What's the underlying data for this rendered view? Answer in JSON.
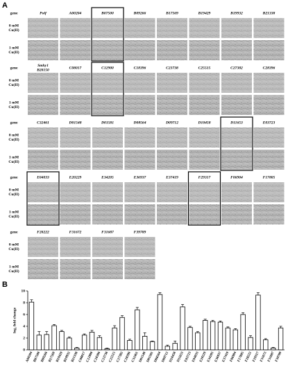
{
  "panel_a": {
    "label": "A",
    "row_labels": [
      [
        "gene"
      ],
      [
        "0 mM",
        "Cu(II)"
      ],
      [
        "1 mM",
        "Cu(II)"
      ]
    ],
    "blocks": [
      {
        "genes": [
          {
            "lines": [
              "Polf"
            ]
          },
          {
            "lines": [
              "A00204"
            ]
          },
          {
            "lines": [
              "B07500"
            ],
            "boxed": true
          },
          {
            "lines": [
              "B09266"
            ]
          },
          {
            "lines": [
              "B17569"
            ]
          },
          {
            "lines": [
              "B19429"
            ]
          },
          {
            "lines": [
              "B19932"
            ]
          },
          {
            "lines": [
              "B21338"
            ]
          }
        ]
      },
      {
        "genes": [
          {
            "lines": [
              "Smhy1",
              "B28150"
            ]
          },
          {
            "lines": [
              "C08017"
            ]
          },
          {
            "lines": [
              "C12900"
            ],
            "boxed": true
          },
          {
            "lines": [
              "C18396"
            ]
          },
          {
            "lines": [
              "C23738"
            ]
          },
          {
            "lines": [
              "C25515"
            ]
          },
          {
            "lines": [
              "C27382"
            ]
          },
          {
            "lines": [
              "C28396"
            ]
          }
        ]
      },
      {
        "genes": [
          {
            "lines": [
              "C32461"
            ]
          },
          {
            "lines": [
              "D01548"
            ]
          },
          {
            "lines": [
              "D01581"
            ]
          },
          {
            "lines": [
              "D08564"
            ]
          },
          {
            "lines": [
              "D09712"
            ]
          },
          {
            "lines": [
              "D10458"
            ]
          },
          {
            "lines": [
              "D11653"
            ],
            "boxed": true
          },
          {
            "lines": [
              "E03723"
            ]
          }
        ]
      },
      {
        "genes": [
          {
            "lines": [
              "E04033"
            ],
            "boxed": true
          },
          {
            "lines": [
              "E20229"
            ]
          },
          {
            "lines": [
              "E34205"
            ]
          },
          {
            "lines": [
              "E36937"
            ]
          },
          {
            "lines": [
              "E37419"
            ]
          },
          {
            "lines": [
              "F29317"
            ],
            "boxed": true
          },
          {
            "lines": [
              "F06904"
            ]
          },
          {
            "lines": [
              "F17805"
            ]
          }
        ]
      },
      {
        "genes": [
          {
            "lines": [
              "F28222"
            ]
          },
          {
            "lines": [
              "F31672"
            ]
          },
          {
            "lines": [
              "F31687"
            ]
          },
          {
            "lines": [
              "F39789"
            ]
          }
        ]
      }
    ]
  },
  "panel_b": {
    "label": "B"
  },
  "chart_data": {
    "type": "bar",
    "y_label": "log₂ fold change",
    "categories": [
      "A00204",
      "B07500",
      "B09266",
      "B17569",
      "B19429",
      "B19932",
      "B21338",
      "C08017",
      "C12900",
      "C18396",
      "C23738",
      "C25515",
      "C27382",
      "C28396",
      "C32461",
      "D01548",
      "D01581",
      "D08564",
      "D09712",
      "D10458",
      "D11653",
      "E03723",
      "E04033",
      "E20229",
      "E34205",
      "E36937",
      "E37419",
      "F06904",
      "F17805",
      "F28222",
      "F29317",
      "F31672",
      "F31687",
      "F39789"
    ],
    "values": [
      8.1,
      2.5,
      2.6,
      4.1,
      3.1,
      2.0,
      0.3,
      2.5,
      3.0,
      2.1,
      0.2,
      3.7,
      5.5,
      1.6,
      6.8,
      2.3,
      1.4,
      9.4,
      0.6,
      1.1,
      7.3,
      3.8,
      2.9,
      5.0,
      4.8,
      4.7,
      3.7,
      3.4,
      6.0,
      2.1,
      9.3,
      1.7,
      0.3,
      3.7
    ],
    "errors": [
      0.4,
      0.6,
      0.5,
      0.2,
      0.2,
      0.2,
      0.1,
      0.2,
      0.3,
      0.3,
      0.1,
      0.4,
      0.3,
      0.2,
      0.4,
      0.6,
      0.1,
      0.3,
      0.2,
      0.4,
      0.4,
      0.2,
      0.2,
      0.2,
      0.2,
      0.2,
      0.2,
      0.2,
      0.3,
      0.3,
      0.4,
      0.2,
      0.1,
      0.3
    ],
    "color": "#ffffff",
    "edge_color": "#000000",
    "ylim": [
      0,
      10
    ],
    "yticks": [
      0,
      2,
      4,
      6,
      8,
      10
    ]
  }
}
